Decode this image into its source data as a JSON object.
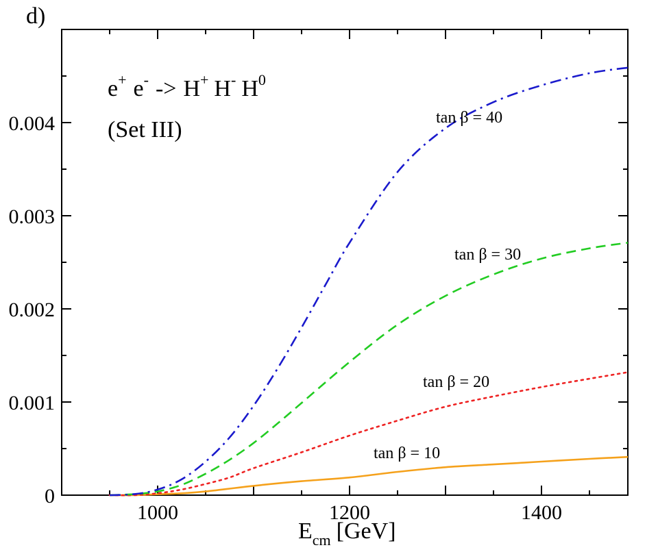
{
  "panel_label": "d)",
  "process": {
    "e1": "e",
    "e1_sup": "+",
    "e2": "e",
    "e2_sup": "-",
    "arrow": "->",
    "h1": "H",
    "h1_sup": "+",
    "h2": "H",
    "h2_sup": "-",
    "h3": "H",
    "h3_sup": "0"
  },
  "set_label": "(Set III)",
  "x_label": {
    "main": "E",
    "sub": "cm",
    "unit": "[GeV]"
  },
  "chart_data": {
    "type": "line",
    "title": "",
    "xlabel": "E_cm [GeV]",
    "ylabel": "",
    "xlim": [
      900,
      1490
    ],
    "ylim": [
      0,
      0.005
    ],
    "x_ticks": [
      1000,
      1200,
      1400
    ],
    "x_tick_labels": [
      "1000",
      "1200",
      "1400"
    ],
    "y_ticks": [
      0,
      0.001,
      0.002,
      0.003,
      0.004
    ],
    "y_tick_labels": [
      "0",
      "0.001",
      "0.002",
      "0.003",
      "0.004"
    ],
    "x_minor_step": 100,
    "y_minor_step": 0.0005,
    "grid": false,
    "series": [
      {
        "name": "tan β = 10",
        "label": "tan β = 10",
        "color": "#f5a11b",
        "style": "solid",
        "x": [
          950,
          975,
          1000,
          1025,
          1050,
          1100,
          1150,
          1200,
          1250,
          1300,
          1350,
          1400,
          1450,
          1490
        ],
        "values": [
          0,
          0,
          1e-05,
          2e-05,
          4e-05,
          0.0001,
          0.00015,
          0.00019,
          0.00025,
          0.0003,
          0.00033,
          0.00036,
          0.00039,
          0.00041
        ]
      },
      {
        "name": "tan β = 20",
        "label": "tan β = 20",
        "color": "#ee2222",
        "style": "dotted",
        "x": [
          950,
          975,
          1000,
          1025,
          1050,
          1075,
          1100,
          1150,
          1200,
          1250,
          1300,
          1350,
          1400,
          1450,
          1490
        ],
        "values": [
          0,
          0,
          2e-05,
          6e-05,
          0.00012,
          0.00019,
          0.00029,
          0.00046,
          0.00064,
          0.0008,
          0.00095,
          0.00106,
          0.00116,
          0.00125,
          0.00132
        ]
      },
      {
        "name": "tan β = 30",
        "label": "tan β = 30",
        "color": "#22cc22",
        "style": "dashed",
        "x": [
          950,
          975,
          1000,
          1025,
          1050,
          1075,
          1100,
          1125,
          1150,
          1200,
          1250,
          1300,
          1350,
          1400,
          1450,
          1490
        ],
        "values": [
          0,
          1e-05,
          4e-05,
          0.00011,
          0.00023,
          0.00038,
          0.00056,
          0.00077,
          0.00099,
          0.00143,
          0.00183,
          0.00214,
          0.00237,
          0.00254,
          0.00265,
          0.00271
        ]
      },
      {
        "name": "tan β = 40",
        "label": "tan β = 40",
        "color": "#1a1acc",
        "style": "dashdot",
        "x": [
          950,
          975,
          1000,
          1025,
          1050,
          1075,
          1100,
          1125,
          1150,
          1175,
          1200,
          1250,
          1300,
          1350,
          1400,
          1450,
          1490
        ],
        "values": [
          0,
          1e-05,
          6e-05,
          0.00017,
          0.00036,
          0.00062,
          0.00096,
          0.00136,
          0.0018,
          0.00226,
          0.00271,
          0.00347,
          0.00394,
          0.00422,
          0.0044,
          0.00453,
          0.00459
        ]
      }
    ],
    "annotations": [
      {
        "text": "tan β = 40",
        "series": "tan β = 40"
      },
      {
        "text": "tan β = 30",
        "series": "tan β = 30"
      },
      {
        "text": "tan β = 20",
        "series": "tan β = 20"
      },
      {
        "text": "tan β = 10",
        "series": "tan β = 10"
      }
    ]
  }
}
